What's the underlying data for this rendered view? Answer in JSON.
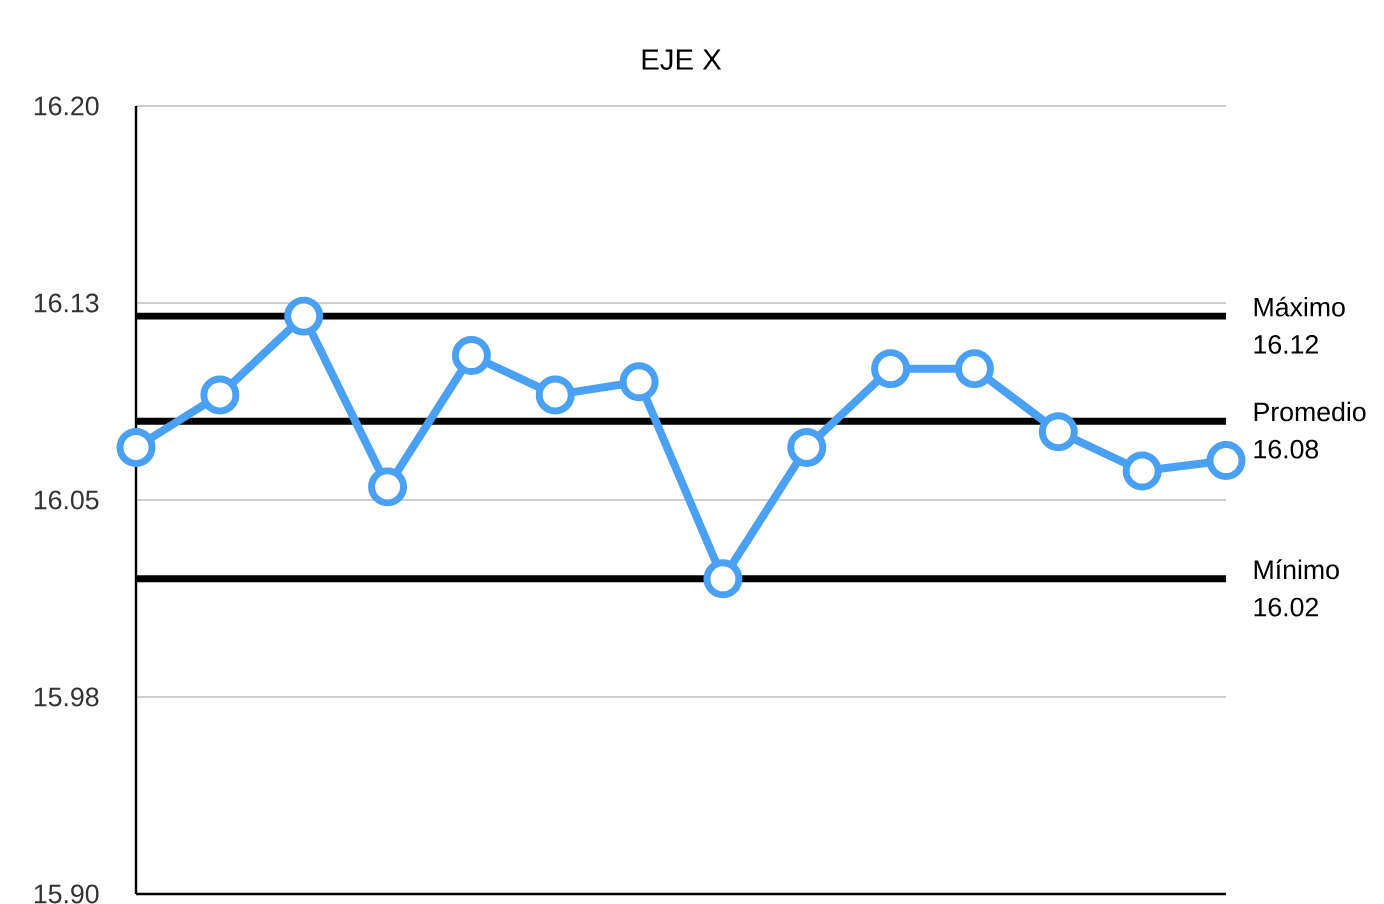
{
  "chart_data": {
    "type": "line",
    "title": "EJE X",
    "categories": [
      null,
      null,
      null,
      null,
      null,
      null,
      null,
      null,
      null,
      null,
      null,
      null,
      null,
      null
    ],
    "series": [
      {
        "color": "#4aa0f5",
        "values": [
          16.07,
          16.09,
          16.12,
          16.055,
          16.105,
          16.09,
          16.095,
          16.02,
          16.07,
          16.1,
          16.1,
          16.076,
          16.061,
          16.065
        ]
      }
    ],
    "ylim": [
      15.9,
      16.2
    ],
    "yticks": [
      {
        "value": 15.9,
        "label": "15.90"
      },
      {
        "value": 15.975,
        "label": "15.98"
      },
      {
        "value": 16.05,
        "label": "16.05"
      },
      {
        "value": 16.125,
        "label": "16.13"
      },
      {
        "value": 16.2,
        "label": "16.20"
      }
    ],
    "grid": "y",
    "marker": "circle",
    "line_style": "solid",
    "ref_lines": [
      {
        "axis": "y",
        "value": 16.12,
        "label": "Máximo 16.12",
        "color": "#000000"
      },
      {
        "axis": "y",
        "value": 16.08,
        "label": "Promedio 16.08",
        "color": "#000000"
      },
      {
        "axis": "y",
        "value": 16.02,
        "label": "Mínimo 16.02",
        "color": "#000000"
      }
    ]
  }
}
